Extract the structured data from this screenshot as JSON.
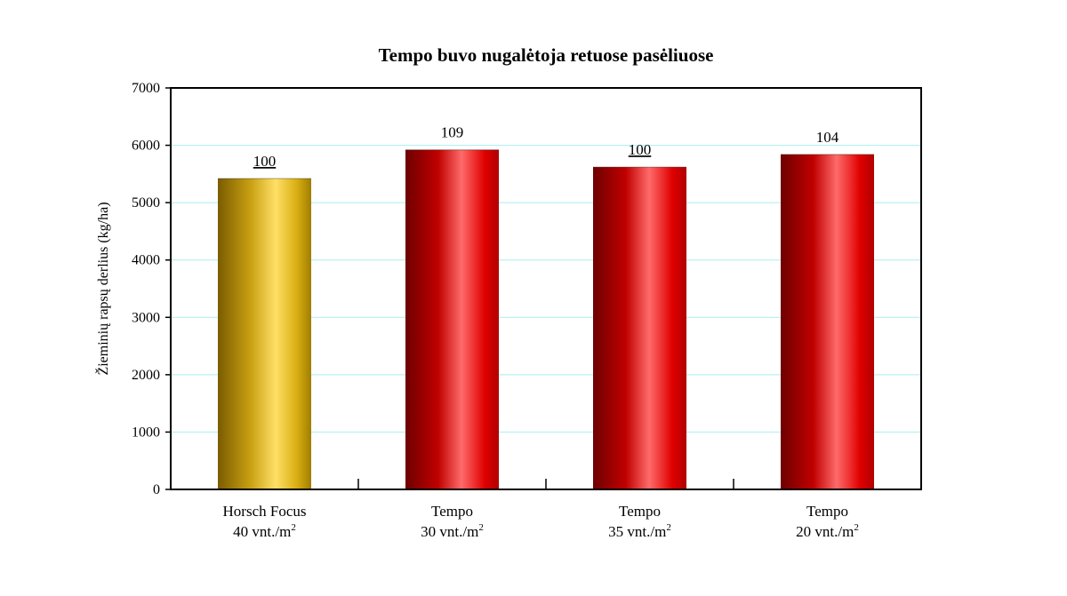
{
  "chart_data": {
    "type": "bar",
    "title": "Tempo buvo nugalėtoja retuose pasėliuose",
    "ylabel": "Žieminių rapsų derlius (kg/ha)",
    "xlabel": "",
    "ylim": [
      0,
      7000
    ],
    "yticks": [
      0,
      1000,
      2000,
      3000,
      4000,
      5000,
      6000,
      7000
    ],
    "grid": true,
    "categories": [
      {
        "line1": "Horsch Focus",
        "line2": "40 vnt./m",
        "sup": "2"
      },
      {
        "line1": "Tempo",
        "line2": "30 vnt./m",
        "sup": "2"
      },
      {
        "line1": "Tempo",
        "line2": "35 vnt./m",
        "sup": "2"
      },
      {
        "line1": "Tempo",
        "line2": "20 vnt./m",
        "sup": "2"
      }
    ],
    "values": [
      5420,
      5920,
      5620,
      5840
    ],
    "data_labels": [
      {
        "text": "100",
        "underline": true
      },
      {
        "text": "109",
        "underline": false
      },
      {
        "text": "100",
        "underline": true
      },
      {
        "text": "104",
        "underline": false
      }
    ],
    "bar_colors": [
      "#d8ad10",
      "#d40000",
      "#d40000",
      "#d40000"
    ],
    "gridline_color": "#a8eef0"
  }
}
